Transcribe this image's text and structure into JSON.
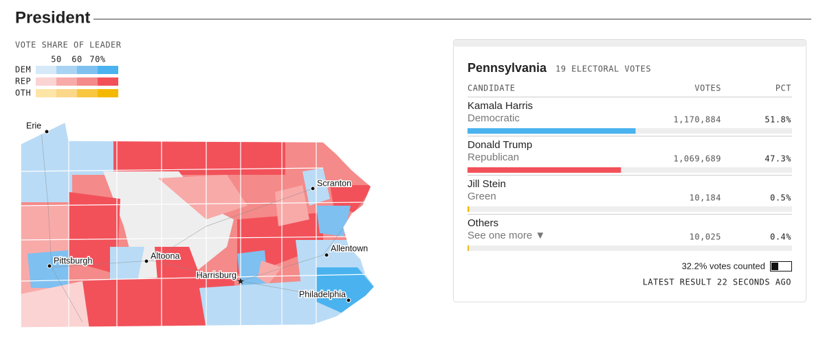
{
  "header": {
    "title": "President"
  },
  "legend": {
    "title": "VOTE SHARE OF LEADER",
    "ticks": [
      "50",
      "60",
      "70%"
    ],
    "rows": [
      "DEM",
      "REP",
      "OTH"
    ]
  },
  "map": {
    "cities": [
      "Erie",
      "Scranton",
      "Pittsburgh",
      "Altoona",
      "Allentown",
      "Harrisburg",
      "Philadelphia"
    ]
  },
  "results": {
    "state": "Pennsylvania",
    "electoral_votes": "19 ELECTORAL VOTES",
    "columns": [
      "CANDIDATE",
      "VOTES",
      "PCT"
    ],
    "candidates": [
      {
        "name": "Kamala Harris",
        "party": "Democratic",
        "votes": "1,170,884",
        "pct": 51.8,
        "pct_label": "51.8%",
        "color": "#4ab3ef"
      },
      {
        "name": "Donald Trump",
        "party": "Republican",
        "votes": "1,069,689",
        "pct": 47.3,
        "pct_label": "47.3%",
        "color": "#f2515a"
      },
      {
        "name": "Jill Stein",
        "party": "Green",
        "votes": "10,184",
        "pct": 0.5,
        "pct_label": "0.5%",
        "color": "#f5b800"
      },
      {
        "name": "Others",
        "party": "See one more ▼",
        "votes": "10,025",
        "pct": 0.4,
        "pct_label": "0.4%",
        "color": "#f5b800"
      }
    ],
    "votes_counted": "32.2% votes counted",
    "latest": "LATEST RESULT 22 SECONDS AGO"
  }
}
